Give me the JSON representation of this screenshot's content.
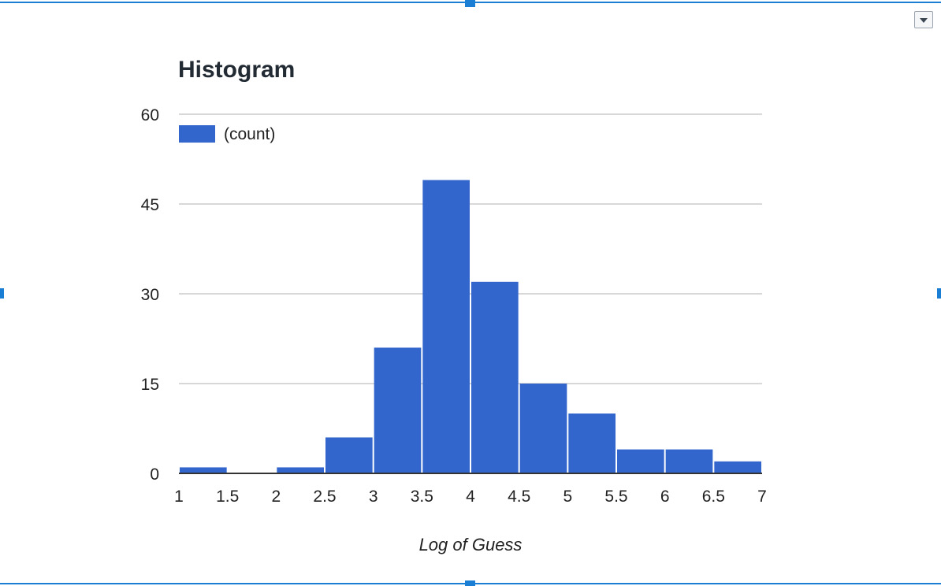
{
  "toolbar": {
    "menu_icon": "dropdown-triangle-icon"
  },
  "chart_data": {
    "type": "bar",
    "title": "Histogram",
    "xlabel": "Log of Guess",
    "ylabel": "",
    "legend": {
      "label": "(count)",
      "position": "top-left"
    },
    "bar_color": "#3366cc",
    "grid": true,
    "xlim": [
      1,
      7
    ],
    "ylim": [
      0,
      60
    ],
    "x_ticks": [
      "1",
      "1.5",
      "2",
      "2.5",
      "3",
      "3.5",
      "4",
      "4.5",
      "5",
      "5.5",
      "6",
      "6.5",
      "7"
    ],
    "y_ticks": [
      "0",
      "15",
      "30",
      "45",
      "60"
    ],
    "bins": [
      {
        "from": 1.0,
        "to": 1.5,
        "count": 1
      },
      {
        "from": 1.5,
        "to": 2.0,
        "count": 0
      },
      {
        "from": 2.0,
        "to": 2.5,
        "count": 1
      },
      {
        "from": 2.5,
        "to": 3.0,
        "count": 6
      },
      {
        "from": 3.0,
        "to": 3.5,
        "count": 21
      },
      {
        "from": 3.5,
        "to": 4.0,
        "count": 49
      },
      {
        "from": 4.0,
        "to": 4.5,
        "count": 32
      },
      {
        "from": 4.5,
        "to": 5.0,
        "count": 15
      },
      {
        "from": 5.0,
        "to": 5.5,
        "count": 10
      },
      {
        "from": 5.5,
        "to": 6.0,
        "count": 4
      },
      {
        "from": 6.0,
        "to": 6.5,
        "count": 4
      },
      {
        "from": 6.5,
        "to": 7.0,
        "count": 2
      }
    ]
  }
}
